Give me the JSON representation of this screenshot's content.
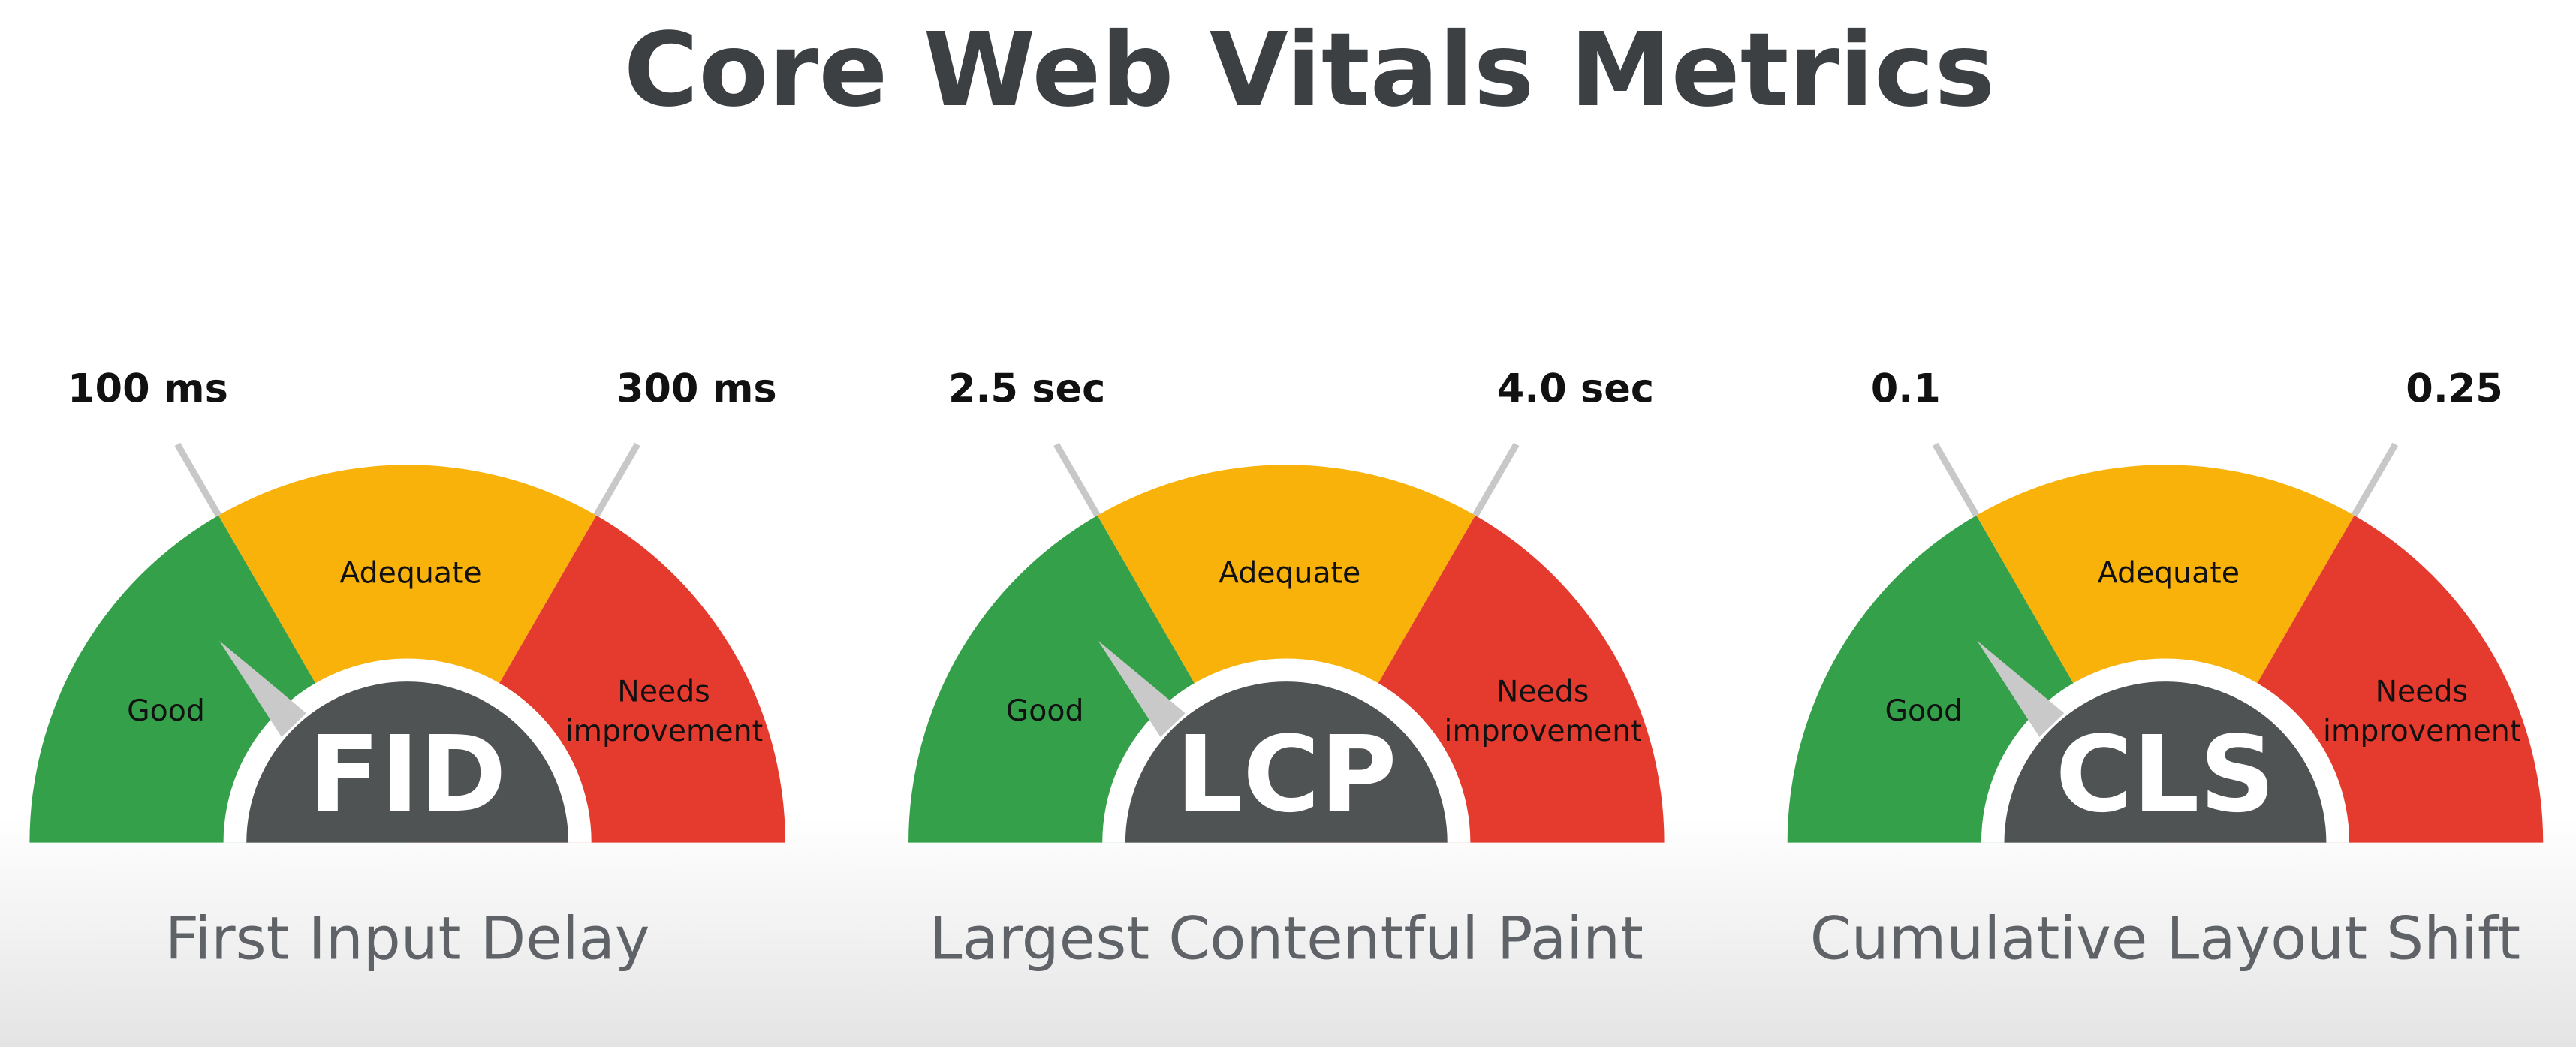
{
  "title": "Core Web Vitals Metrics",
  "gauges": [
    {
      "abbr": "FID",
      "name": "First Input Delay",
      "thresholds": [
        "100 ms",
        "300 ms"
      ],
      "zones": [
        "Good",
        "Adequate",
        "Needs improvement"
      ]
    },
    {
      "abbr": "LCP",
      "name": "Largest Contentful Paint",
      "thresholds": [
        "2.5 sec",
        "4.0 sec"
      ],
      "zones": [
        "Good",
        "Adequate",
        "Needs improvement"
      ]
    },
    {
      "abbr": "CLS",
      "name": "Cumulative Layout Shift",
      "thresholds": [
        "0.1",
        "0.25"
      ],
      "zones": [
        "Good",
        "Adequate",
        "Needs improvement"
      ]
    }
  ]
}
